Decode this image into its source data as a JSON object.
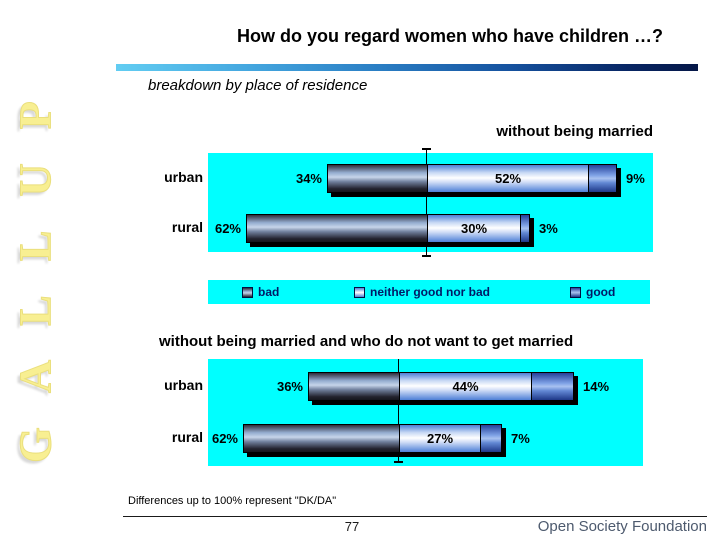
{
  "slide": {
    "title": "How do you regard women who have children …?",
    "subtitle": "breakdown by place of residence",
    "watermark": "GALLUP",
    "footnote": "Differences up to 100% represent \"DK/DA\"",
    "page_number": "77",
    "brand": "Open Society Foundation"
  },
  "legend": {
    "items": [
      {
        "id": "bad",
        "label": "bad"
      },
      {
        "id": "neither",
        "label": "neither good nor bad"
      },
      {
        "id": "good",
        "label": "good"
      }
    ]
  },
  "colors": {
    "panel_background": "#00ffff",
    "bad_segment": "#3a4a66",
    "neither_segment": "#ffffff",
    "good_segment": "#2a4aa0",
    "legend_text": "#001a66",
    "brand_text": "#4d5a6e",
    "divider_gradient_left": "#62cdf2",
    "divider_gradient_right": "#051747"
  },
  "chart_data": [
    {
      "type": "bar",
      "orientation": "horizontal",
      "diverging": true,
      "title": "without being married",
      "categories": [
        "urban",
        "rural"
      ],
      "series": [
        {
          "name": "bad",
          "values": [
            34,
            62
          ]
        },
        {
          "name": "neither good nor bad",
          "values": [
            52,
            30
          ]
        },
        {
          "name": "good",
          "values": [
            9,
            3
          ]
        }
      ],
      "unit": "%",
      "legend_position": "below",
      "grid": false
    },
    {
      "type": "bar",
      "orientation": "horizontal",
      "diverging": true,
      "title": "without being married and who do not want to get married",
      "categories": [
        "urban",
        "rural"
      ],
      "series": [
        {
          "name": "bad",
          "values": [
            36,
            62
          ]
        },
        {
          "name": "neither good nor bad",
          "values": [
            44,
            27
          ]
        },
        {
          "name": "good",
          "values": [
            14,
            7
          ]
        }
      ],
      "unit": "%",
      "legend_position": "shared-above",
      "grid": false
    }
  ]
}
